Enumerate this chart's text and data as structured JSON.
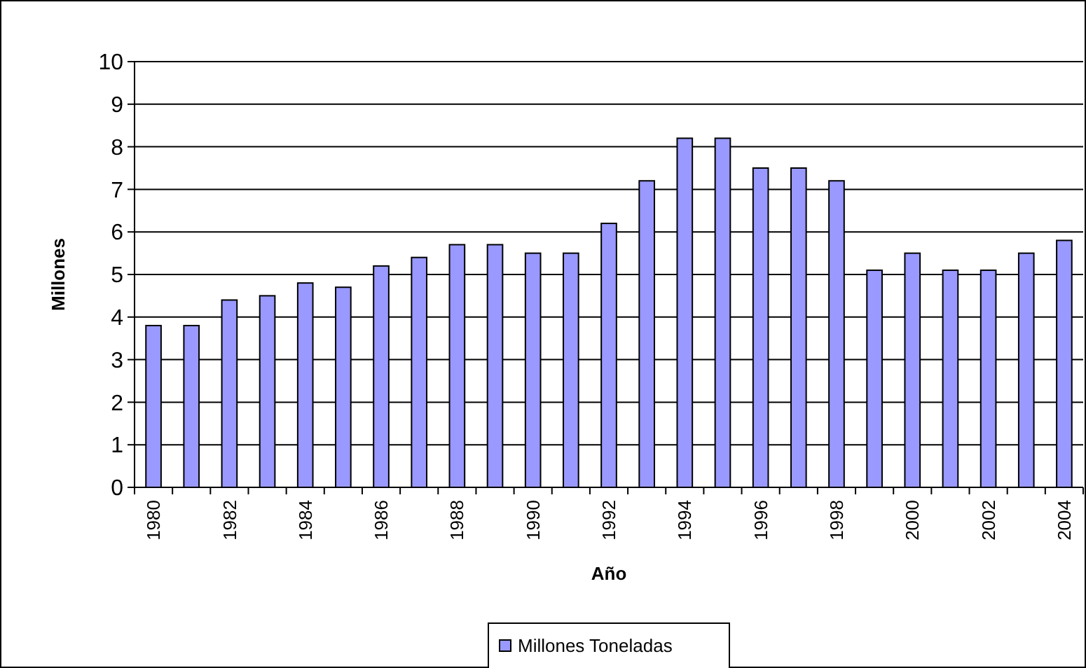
{
  "chart_data": {
    "type": "bar",
    "xlabel": "Año",
    "ylabel": "Millones",
    "categories": [
      "1980",
      null,
      "1982",
      null,
      "1984",
      null,
      "1986",
      null,
      "1988",
      null,
      "1990",
      null,
      "1992",
      null,
      "1994",
      null,
      "1996",
      null,
      "1998",
      null,
      "2000",
      null,
      "2002",
      null,
      "2004"
    ],
    "series": [
      {
        "name": "Millones Toneladas",
        "color": "#9999ff",
        "values": [
          3.8,
          3.8,
          4.4,
          4.5,
          4.8,
          4.7,
          5.2,
          5.4,
          5.7,
          5.7,
          5.5,
          5.5,
          6.2,
          7.2,
          8.2,
          8.2,
          7.5,
          7.5,
          7.2,
          5.1,
          5.5,
          5.1,
          5.1,
          5.5,
          5.8
        ]
      }
    ],
    "ylim": [
      0,
      10
    ],
    "yticks": [
      0,
      1,
      2,
      3,
      4,
      5,
      6,
      7,
      8,
      9,
      10
    ],
    "grid": "y",
    "legend": "bottom"
  }
}
